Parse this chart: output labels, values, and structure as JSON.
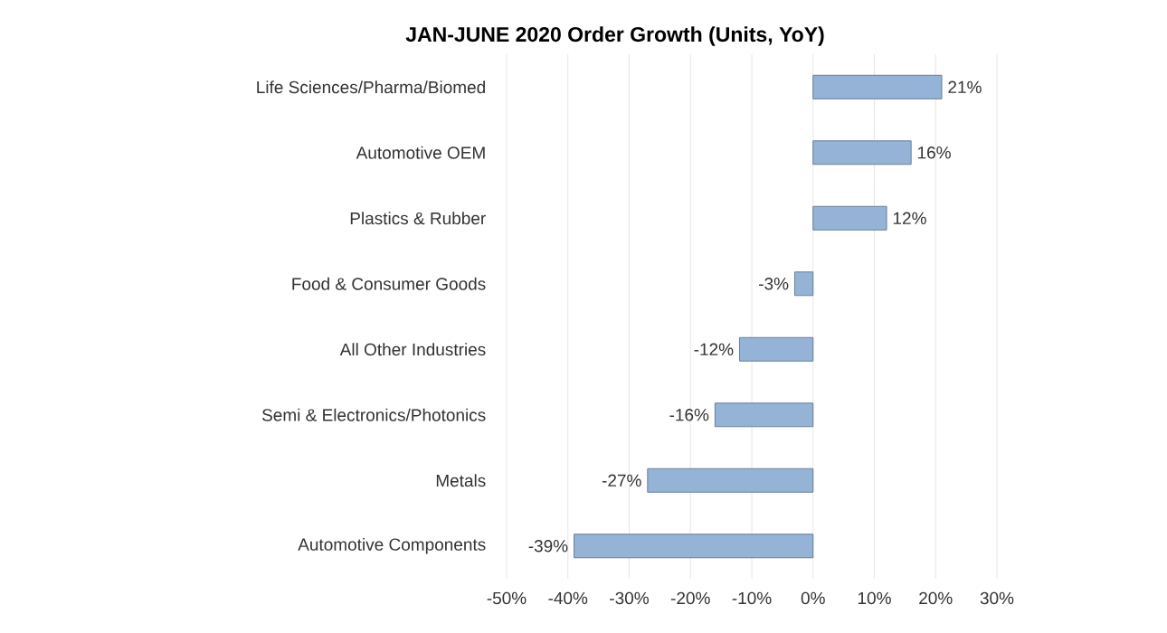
{
  "chart_data": {
    "type": "bar",
    "orientation": "horizontal",
    "title": "JAN-JUNE 2020 Order Growth (Units, YoY)",
    "categories": [
      "Life Sciences/Pharma/Biomed",
      "Automotive OEM",
      "Plastics & Rubber",
      "Food & Consumer Goods",
      "All Other Industries",
      "Semi & Electronics/Photonics",
      "Metals",
      "Automotive Components"
    ],
    "values": [
      21,
      16,
      12,
      -3,
      -12,
      -16,
      -27,
      -39
    ],
    "value_labels": [
      "21%",
      "16%",
      "12%",
      "-3%",
      "-12%",
      "-16%",
      "-27%",
      "-39%"
    ],
    "color": "#95b3d7",
    "xlim": [
      -50,
      30
    ],
    "xticks": [
      {
        "value": -50,
        "label": "-50%"
      },
      {
        "value": -40,
        "label": "-40%"
      },
      {
        "value": -30,
        "label": "-30%"
      },
      {
        "value": -20,
        "label": "-20%"
      },
      {
        "value": -10,
        "label": "-10%"
      },
      {
        "value": 0,
        "label": "0%"
      },
      {
        "value": 10,
        "label": "10%"
      },
      {
        "value": 20,
        "label": "20%"
      },
      {
        "value": 30,
        "label": "30%"
      }
    ],
    "grid": "x"
  }
}
